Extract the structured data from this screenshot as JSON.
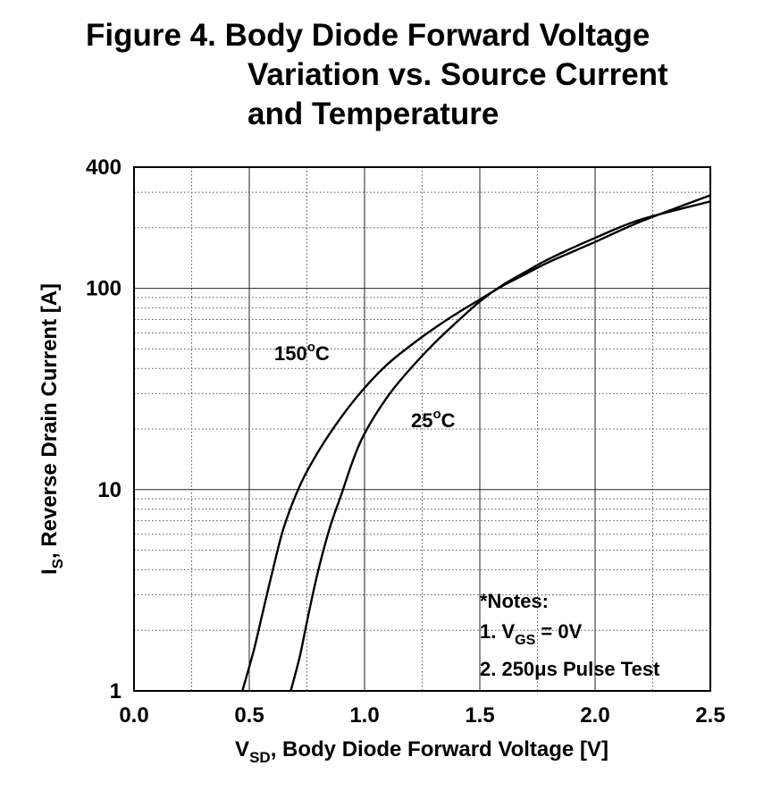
{
  "title_lines": [
    "Figure 4. Body Diode Forward Voltage",
    "Variation vs. Source Current",
    "and Temperature"
  ],
  "chart_data": {
    "type": "line",
    "title": "Figure 4. Body Diode Forward Voltage Variation vs. Source Current and Temperature",
    "xlabel": {
      "main": "V",
      "sub": "SD",
      "rest": ", Body Diode Forward Voltage [V]"
    },
    "ylabel": {
      "main": "I",
      "sub": "S",
      "rest": ", Reverse Drain Current [A]"
    },
    "xlim": [
      0,
      2.5
    ],
    "ylim": [
      1,
      400
    ],
    "yscale": "log",
    "grid": true,
    "x_ticks": [
      "0.0",
      "0.5",
      "1.0",
      "1.5",
      "2.0",
      "2.5"
    ],
    "y_ticks": [
      "1",
      "10",
      "100",
      "400"
    ],
    "series": [
      {
        "name": "150°C",
        "label": {
          "main": "150",
          "sup": "o",
          "rest": "C"
        },
        "x": [
          0.47,
          0.52,
          0.56,
          0.6,
          0.65,
          0.72,
          0.8,
          0.9,
          1.0,
          1.1,
          1.2,
          1.3,
          1.4,
          1.5,
          1.6,
          1.7,
          1.8,
          2.0,
          2.2,
          2.5
        ],
        "y": [
          1.0,
          1.6,
          2.5,
          3.9,
          6.5,
          10.5,
          15.5,
          23.0,
          32.0,
          42.0,
          52.0,
          63.0,
          75.0,
          88.0,
          103.0,
          118.0,
          135.0,
          170.0,
          215.0,
          290.0
        ]
      },
      {
        "name": "25°C",
        "label": {
          "main": "25",
          "sup": "o",
          "rest": "C"
        },
        "x": [
          0.68,
          0.72,
          0.76,
          0.8,
          0.85,
          0.9,
          0.95,
          1.0,
          1.1,
          1.2,
          1.3,
          1.4,
          1.5,
          1.6,
          1.7,
          1.8,
          2.0,
          2.2,
          2.5
        ],
        "y": [
          1.0,
          1.5,
          2.5,
          4.0,
          6.5,
          9.5,
          14.0,
          19.0,
          29.0,
          40.0,
          53.0,
          68.0,
          86.0,
          104.0,
          121.0,
          140.0,
          178.0,
          220.0,
          270.0
        ]
      }
    ],
    "annotations": {
      "notes_heading": "*Notes:",
      "note1": {
        "main": "1. V",
        "sub": "GS",
        "rest": " = 0V"
      },
      "note2": "2. 250μs Pulse Test"
    }
  }
}
